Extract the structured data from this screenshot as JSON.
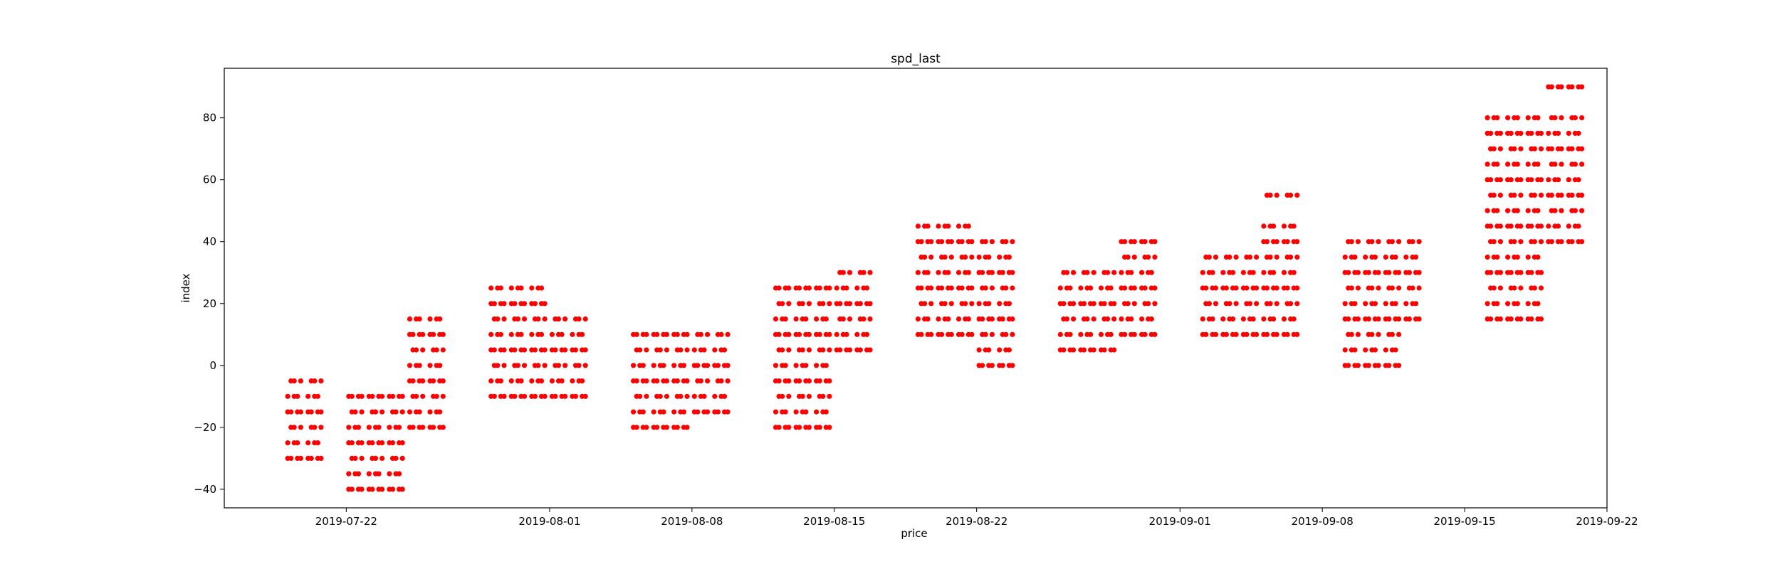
{
  "chart_data": {
    "type": "scatter",
    "title": "spd_last",
    "xlabel": "price",
    "ylabel": "index",
    "x_type": "date",
    "xlim": [
      "2019-07-16",
      "2019-09-22"
    ],
    "ylim": [
      -46,
      96
    ],
    "x_ticks": [
      "2019-07-22",
      "2019-08-01",
      "2019-08-08",
      "2019-08-15",
      "2019-08-22",
      "2019-09-01",
      "2019-09-08",
      "2019-09-15",
      "2019-09-22"
    ],
    "y_ticks": [
      -40,
      -20,
      0,
      20,
      40,
      60,
      80
    ],
    "grid": false,
    "legend": "none",
    "marker_color": "#ff0000",
    "clusters": [
      {
        "days": [
          "2019-07-19",
          "2019-07-20"
        ],
        "y": [
          -30,
          -25,
          -20,
          -15,
          -10,
          -5
        ]
      },
      {
        "days": [
          "2019-07-22",
          "2019-07-23",
          "2019-07-24"
        ],
        "y": [
          -40,
          -35,
          -30,
          -25,
          -20,
          -15,
          -10
        ]
      },
      {
        "days": [
          "2019-07-25",
          "2019-07-26"
        ],
        "y": [
          -20,
          -15,
          -10,
          -5,
          0,
          5,
          10,
          15
        ]
      },
      {
        "days": [
          "2019-07-29",
          "2019-07-30",
          "2019-07-31"
        ],
        "y": [
          -10,
          -5,
          0,
          5,
          10,
          15,
          20,
          25
        ]
      },
      {
        "days": [
          "2019-08-01",
          "2019-08-02"
        ],
        "y": [
          -10,
          -5,
          0,
          5,
          10,
          15
        ]
      },
      {
        "days": [
          "2019-08-05",
          "2019-08-06",
          "2019-08-07"
        ],
        "y": [
          -20,
          -15,
          -10,
          -5,
          0,
          5,
          10
        ]
      },
      {
        "days": [
          "2019-08-08",
          "2019-08-09"
        ],
        "y": [
          -15,
          -10,
          -5,
          0,
          5,
          10
        ]
      },
      {
        "days": [
          "2019-08-12",
          "2019-08-13",
          "2019-08-14"
        ],
        "y": [
          -20,
          -15,
          -10,
          -5,
          0,
          5,
          10,
          15,
          20,
          25
        ]
      },
      {
        "days": [
          "2019-08-15",
          "2019-08-16"
        ],
        "y": [
          5,
          10,
          15,
          20,
          25,
          30
        ]
      },
      {
        "days": [
          "2019-08-19",
          "2019-08-20",
          "2019-08-21"
        ],
        "y": [
          10,
          15,
          20,
          25,
          30,
          35,
          40,
          45
        ]
      },
      {
        "days": [
          "2019-08-22",
          "2019-08-23"
        ],
        "y": [
          0,
          5,
          10,
          15,
          20,
          25,
          30,
          35,
          40
        ]
      },
      {
        "days": [
          "2019-08-26",
          "2019-08-27",
          "2019-08-28"
        ],
        "y": [
          5,
          10,
          15,
          20,
          25,
          30
        ]
      },
      {
        "days": [
          "2019-08-29",
          "2019-08-30"
        ],
        "y": [
          10,
          15,
          20,
          25,
          30,
          35,
          40
        ]
      },
      {
        "days": [
          "2019-09-02",
          "2019-09-03",
          "2019-09-04"
        ],
        "y": [
          10,
          15,
          20,
          25,
          30,
          35
        ]
      },
      {
        "days": [
          "2019-09-05",
          "2019-09-06"
        ],
        "y": [
          10,
          15,
          20,
          25,
          30,
          35,
          40,
          45,
          55
        ]
      },
      {
        "days": [
          "2019-09-09",
          "2019-09-10",
          "2019-09-11"
        ],
        "y": [
          0,
          5,
          10,
          15,
          20,
          25,
          30,
          35,
          40
        ]
      },
      {
        "days": [
          "2019-09-12"
        ],
        "y": [
          15,
          20,
          25,
          30,
          35,
          40
        ]
      },
      {
        "days": [
          "2019-09-16",
          "2019-09-17",
          "2019-09-18"
        ],
        "y": [
          15,
          20,
          25,
          30,
          35,
          40,
          45,
          50,
          55,
          60,
          65,
          70,
          75,
          80
        ]
      },
      {
        "days": [
          "2019-09-19",
          "2019-09-20"
        ],
        "y": [
          40,
          45,
          50,
          55,
          60,
          65,
          70,
          75,
          80,
          90
        ]
      }
    ]
  }
}
